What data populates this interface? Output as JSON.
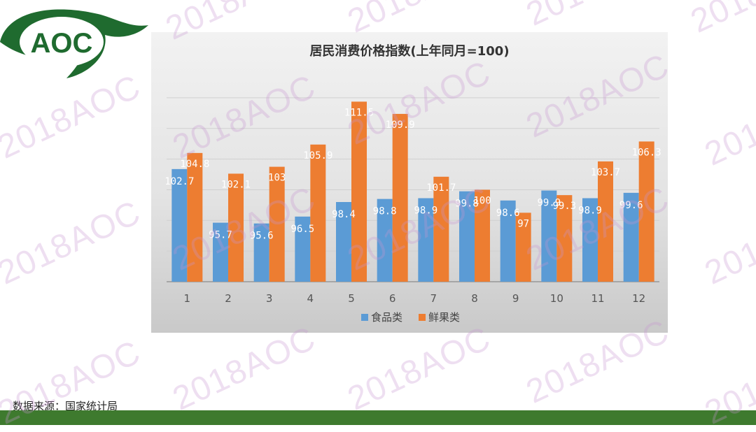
{
  "logo": {
    "text": "AOC"
  },
  "watermark": {
    "text": "2018AOC"
  },
  "footer": {
    "source": "数据来源：国家统计局"
  },
  "colors": {
    "food": "#5b9bd5",
    "fruit": "#ed7d31",
    "brand_green": "#1f6b2f",
    "bottom_bar": "#3e7a2e"
  },
  "chart_data": {
    "type": "bar",
    "title": "居民消费价格指数(上年同月=100)",
    "categories": [
      "1",
      "2",
      "3",
      "4",
      "5",
      "6",
      "7",
      "8",
      "9",
      "10",
      "11",
      "12"
    ],
    "series": [
      {
        "name": "食品类",
        "values": [
          102.7,
          95.7,
          95.6,
          96.5,
          98.4,
          98.8,
          98.9,
          99.8,
          98.6,
          99.9,
          98.9,
          99.6
        ]
      },
      {
        "name": "鲜果类",
        "values": [
          104.8,
          102.1,
          103,
          105.9,
          111.5,
          109.9,
          101.7,
          100,
          97,
          99.3,
          103.7,
          106.3
        ]
      }
    ],
    "ylim": [
      88,
      114
    ],
    "grid": true,
    "legend_position": "bottom"
  }
}
